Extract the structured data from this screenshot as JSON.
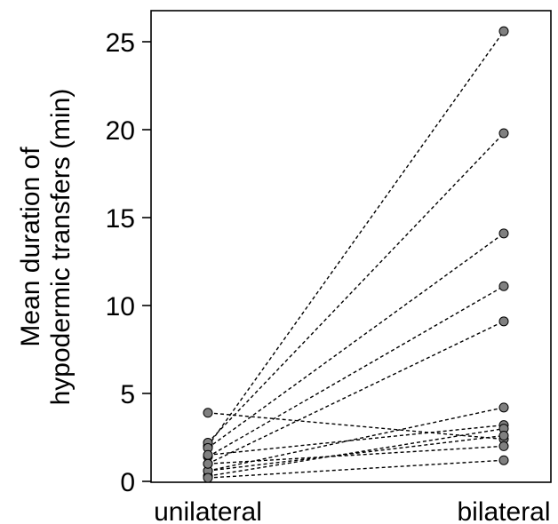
{
  "chart_data": {
    "type": "scatter",
    "title": "",
    "xlabel": "",
    "ylabel_lines": [
      "Mean duration of",
      "hypodermic transfers (min)"
    ],
    "categories": [
      "unilateral",
      "bilateral"
    ],
    "ylim": [
      0,
      26.5
    ],
    "yticks": [
      0,
      5,
      10,
      15,
      20,
      25
    ],
    "grid": false,
    "legend": "none",
    "marker_color": "#808080",
    "pairs": [
      {
        "unilateral": 2.0,
        "bilateral": 25.6
      },
      {
        "unilateral": 2.2,
        "bilateral": 19.8
      },
      {
        "unilateral": 1.9,
        "bilateral": 14.1
      },
      {
        "unilateral": 1.4,
        "bilateral": 11.1
      },
      {
        "unilateral": 1.0,
        "bilateral": 9.1
      },
      {
        "unilateral": 3.9,
        "bilateral": 2.4
      },
      {
        "unilateral": 0.6,
        "bilateral": 4.2
      },
      {
        "unilateral": 1.5,
        "bilateral": 3.2
      },
      {
        "unilateral": 0.3,
        "bilateral": 3.0
      },
      {
        "unilateral": 0.6,
        "bilateral": 2.6
      },
      {
        "unilateral": 1.0,
        "bilateral": 2.0
      },
      {
        "unilateral": 0.2,
        "bilateral": 1.2
      }
    ]
  }
}
